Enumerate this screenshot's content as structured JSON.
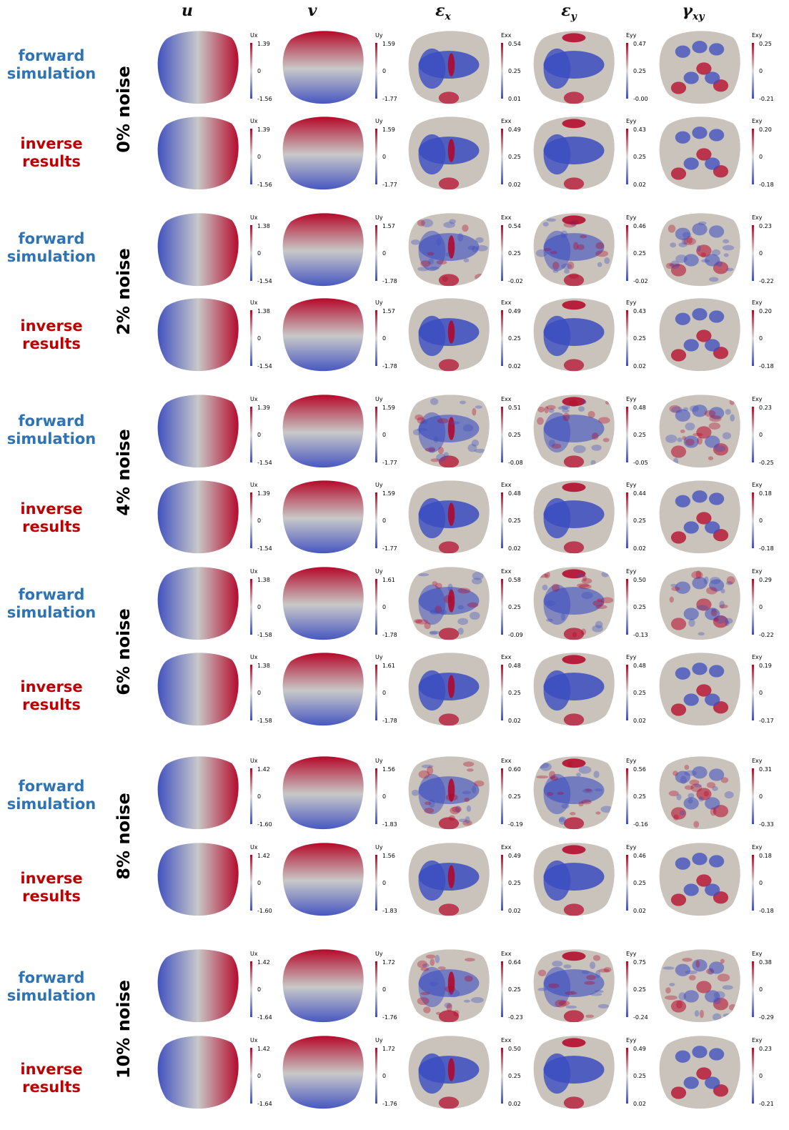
{
  "column_headers": [
    {
      "base": "u",
      "sub": ""
    },
    {
      "base": "v",
      "sub": ""
    },
    {
      "base": "ε",
      "sub": "x"
    },
    {
      "base": "ε",
      "sub": "y"
    },
    {
      "base": "γ",
      "sub": "xy"
    }
  ],
  "row_labels": {
    "forward": [
      "forward",
      "simulation"
    ],
    "inverse": [
      "inverse",
      "results"
    ]
  },
  "noise_levels": [
    "0% noise",
    "2% noise",
    "4% noise",
    "6% noise",
    "8% noise",
    "10% noise"
  ],
  "colorbar_titles": [
    "Ux",
    "Uy",
    "Exx",
    "Eyy",
    "Exy"
  ],
  "field_colors": {
    "low": "#3b4cc0",
    "mid": "#c8c8c8",
    "high": "#b40426"
  },
  "colorbars": [
    [
      [
        "1.39",
        "0",
        "-1.56"
      ],
      [
        "1.59",
        "0",
        "-1.77"
      ],
      [
        "0.54",
        "0.25",
        "0.01"
      ],
      [
        "0.47",
        "0.25",
        "-0.00"
      ],
      [
        "0.25",
        "0",
        "-0.21"
      ]
    ],
    [
      [
        "1.39",
        "0",
        "-1.56"
      ],
      [
        "1.59",
        "0",
        "-1.77"
      ],
      [
        "0.49",
        "0.25",
        "0.02"
      ],
      [
        "0.43",
        "0.25",
        "0.02"
      ],
      [
        "0.20",
        "0",
        "-0.18"
      ]
    ],
    [
      [
        "1.38",
        "0",
        "-1.54"
      ],
      [
        "1.57",
        "0",
        "-1.78"
      ],
      [
        "0.54",
        "0.25",
        "-0.02"
      ],
      [
        "0.46",
        "0.25",
        "-0.02"
      ],
      [
        "0.23",
        "0",
        "-0.22"
      ]
    ],
    [
      [
        "1.38",
        "0",
        "-1.54"
      ],
      [
        "1.57",
        "0",
        "-1.78"
      ],
      [
        "0.49",
        "0.25",
        "0.02"
      ],
      [
        "0.43",
        "0.25",
        "0.02"
      ],
      [
        "0.20",
        "0",
        "-0.18"
      ]
    ],
    [
      [
        "1.39",
        "0",
        "-1.54"
      ],
      [
        "1.59",
        "0",
        "-1.77"
      ],
      [
        "0.51",
        "0.25",
        "-0.08"
      ],
      [
        "0.48",
        "0.25",
        "-0.05"
      ],
      [
        "0.23",
        "0",
        "-0.25"
      ]
    ],
    [
      [
        "1.39",
        "0",
        "-1.54"
      ],
      [
        "1.59",
        "0",
        "-1.77"
      ],
      [
        "0.48",
        "0.25",
        "0.02"
      ],
      [
        "0.44",
        "0.25",
        "0.02"
      ],
      [
        "0.18",
        "0",
        "-0.18"
      ]
    ],
    [
      [
        "1.38",
        "0",
        "-1.58"
      ],
      [
        "1.61",
        "0",
        "-1.78"
      ],
      [
        "0.58",
        "0.25",
        "-0.09"
      ],
      [
        "0.50",
        "0.25",
        "-0.13"
      ],
      [
        "0.29",
        "0",
        "-0.22"
      ]
    ],
    [
      [
        "1.38",
        "0",
        "-1.58"
      ],
      [
        "1.61",
        "0",
        "-1.78"
      ],
      [
        "0.48",
        "0.25",
        "0.02"
      ],
      [
        "0.48",
        "0.25",
        "0.02"
      ],
      [
        "0.19",
        "0",
        "-0.17"
      ]
    ],
    [
      [
        "1.42",
        "0",
        "-1.60"
      ],
      [
        "1.56",
        "0",
        "-1.83"
      ],
      [
        "0.60",
        "0.25",
        "-0.19"
      ],
      [
        "0.56",
        "0.25",
        "-0.16"
      ],
      [
        "0.31",
        "0",
        "-0.33"
      ]
    ],
    [
      [
        "1.42",
        "0",
        "-1.60"
      ],
      [
        "1.56",
        "0",
        "-1.83"
      ],
      [
        "0.49",
        "0.25",
        "0.02"
      ],
      [
        "0.46",
        "0.25",
        "0.02"
      ],
      [
        "0.18",
        "0",
        "-0.18"
      ]
    ],
    [
      [
        "1.42",
        "0",
        "-1.64"
      ],
      [
        "1.72",
        "0",
        "-1.76"
      ],
      [
        "0.64",
        "0.25",
        "-0.23"
      ],
      [
        "0.75",
        "0.25",
        "-0.24"
      ],
      [
        "0.38",
        "0",
        "-0.29"
      ]
    ],
    [
      [
        "1.42",
        "0",
        "-1.64"
      ],
      [
        "1.72",
        "0",
        "-1.76"
      ],
      [
        "0.50",
        "0.25",
        "0.02"
      ],
      [
        "0.49",
        "0.25",
        "0.02"
      ],
      [
        "0.23",
        "0",
        "-0.21"
      ]
    ]
  ]
}
